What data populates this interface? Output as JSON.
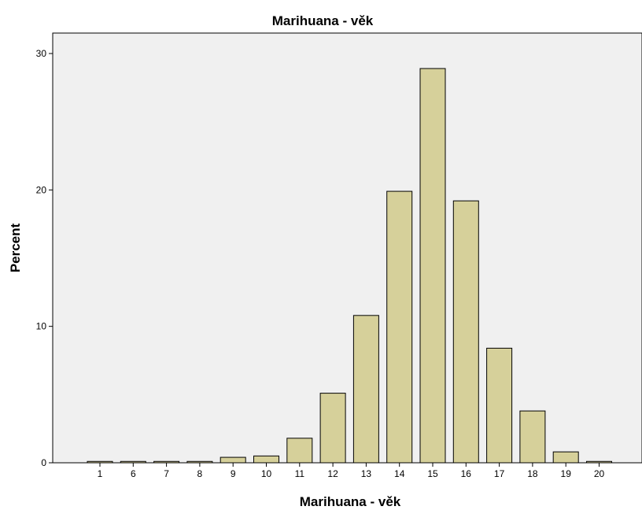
{
  "chart_data": {
    "type": "bar",
    "title": "Marihuana - věk",
    "xlabel": "Marihuana - věk",
    "ylabel": "Percent",
    "categories": [
      "1",
      "6",
      "7",
      "8",
      "9",
      "10",
      "11",
      "12",
      "13",
      "14",
      "15",
      "16",
      "17",
      "18",
      "19",
      "20"
    ],
    "values": [
      0.1,
      0.1,
      0.1,
      0.1,
      0.4,
      0.5,
      1.8,
      5.1,
      10.8,
      19.9,
      28.9,
      19.2,
      8.4,
      3.8,
      0.8,
      0.1
    ],
    "ylim": [
      0,
      31.5
    ],
    "yticks": [
      0,
      10,
      20,
      30
    ],
    "grid": false,
    "colors": {
      "bar_fill": "#d6d09a",
      "bar_stroke": "#000000",
      "plot_bg": "#f0f0f0"
    }
  }
}
